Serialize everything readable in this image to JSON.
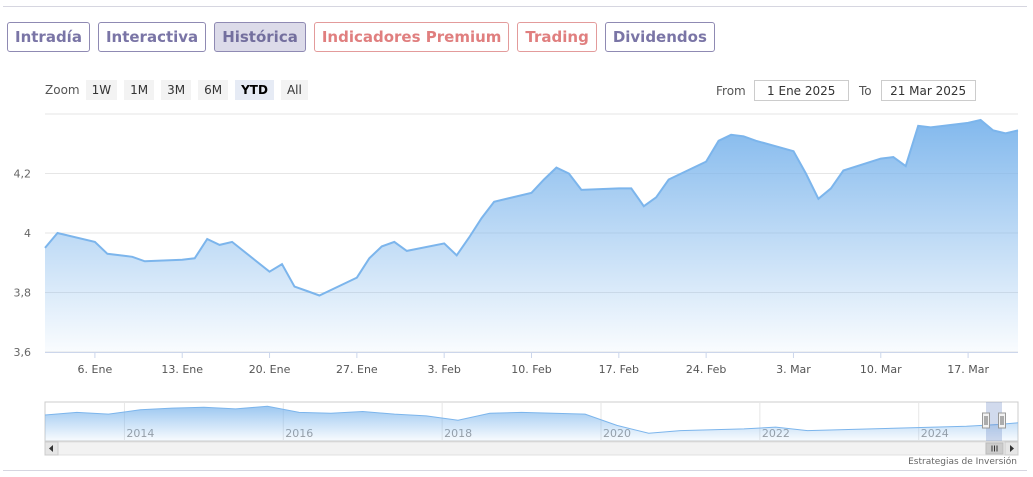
{
  "tabs": [
    {
      "label": "Intradía",
      "color": "purple",
      "active": false
    },
    {
      "label": "Interactiva",
      "color": "purple",
      "active": false
    },
    {
      "label": "Histórica",
      "color": "purple",
      "active": true
    },
    {
      "label": "Indicadores Premium",
      "color": "red",
      "active": false
    },
    {
      "label": "Trading",
      "color": "red",
      "active": false
    },
    {
      "label": "Dividendos",
      "color": "purple",
      "active": false
    }
  ],
  "zoom": {
    "label": "Zoom",
    "buttons": [
      "1W",
      "1M",
      "3M",
      "6M",
      "YTD",
      "All"
    ],
    "selected": "YTD"
  },
  "range": {
    "from_label": "From",
    "from_value": "1 Ene 2025",
    "to_label": "To",
    "to_value": "21 Mar 2025"
  },
  "credit": "Estrategias de Inversión",
  "colors": {
    "line": "#7cb5ec",
    "fill_top": "#7cb5ec",
    "grid": "#e6e6e6",
    "navigator_mask": "#cccccc"
  },
  "chart_data": {
    "type": "area",
    "title": "",
    "xlabel": "",
    "ylabel": "",
    "ylim": [
      3.6,
      4.4
    ],
    "yticks": [
      3.6,
      3.8,
      4.0,
      4.2
    ],
    "ytick_labels": [
      "3,6",
      "3,8",
      "4",
      "4,2"
    ],
    "xlim": [
      "2025-01-02",
      "2025-03-21"
    ],
    "xticks": [
      "2025-01-06",
      "2025-01-13",
      "2025-01-20",
      "2025-01-27",
      "2025-02-03",
      "2025-02-10",
      "2025-02-17",
      "2025-02-24",
      "2025-03-03",
      "2025-03-10",
      "2025-03-17"
    ],
    "xtick_labels": [
      "6. Ene",
      "13. Ene",
      "20. Ene",
      "27. Ene",
      "3. Feb",
      "10. Feb",
      "17. Feb",
      "24. Feb",
      "3. Mar",
      "10. Mar",
      "17. Mar"
    ],
    "grid": true,
    "legend": "none",
    "series": [
      {
        "x": [
          "2025-01-02",
          "2025-01-03",
          "2025-01-06",
          "2025-01-07",
          "2025-01-08",
          "2025-01-09",
          "2025-01-10",
          "2025-01-13",
          "2025-01-14",
          "2025-01-15",
          "2025-01-16",
          "2025-01-17",
          "2025-01-20",
          "2025-01-21",
          "2025-01-22",
          "2025-01-23",
          "2025-01-24",
          "2025-01-27",
          "2025-01-28",
          "2025-01-29",
          "2025-01-30",
          "2025-01-31",
          "2025-02-03",
          "2025-02-04",
          "2025-02-05",
          "2025-02-06",
          "2025-02-07",
          "2025-02-10",
          "2025-02-11",
          "2025-02-12",
          "2025-02-13",
          "2025-02-14",
          "2025-02-17",
          "2025-02-18",
          "2025-02-19",
          "2025-02-20",
          "2025-02-21",
          "2025-02-24",
          "2025-02-25",
          "2025-02-26",
          "2025-02-27",
          "2025-02-28",
          "2025-03-03",
          "2025-03-04",
          "2025-03-05",
          "2025-03-06",
          "2025-03-07",
          "2025-03-10",
          "2025-03-11",
          "2025-03-12",
          "2025-03-13",
          "2025-03-14",
          "2025-03-17",
          "2025-03-18",
          "2025-03-19",
          "2025-03-20",
          "2025-03-21"
        ],
        "values": [
          3.95,
          4.0,
          3.97,
          3.93,
          3.925,
          3.92,
          3.905,
          3.91,
          3.915,
          3.98,
          3.96,
          3.97,
          3.87,
          3.895,
          3.82,
          3.805,
          3.79,
          3.85,
          3.915,
          3.955,
          3.97,
          3.94,
          3.965,
          3.925,
          3.985,
          4.05,
          4.105,
          4.135,
          4.18,
          4.22,
          4.2,
          4.145,
          4.15,
          4.15,
          4.09,
          4.12,
          4.18,
          4.24,
          4.31,
          4.33,
          4.325,
          4.31,
          4.275,
          4.2,
          4.115,
          4.15,
          4.21,
          4.25,
          4.255,
          4.225,
          4.36,
          4.355,
          4.37,
          4.38,
          4.345,
          4.335,
          4.345
        ]
      }
    ],
    "navigator": {
      "type": "area",
      "xtick_labels": [
        "2014",
        "2016",
        "2018",
        "2020",
        "2022",
        "2024"
      ],
      "xlim": [
        2013.0,
        2025.25
      ],
      "ylim": [
        2.0,
        6.5
      ],
      "x": [
        2013.0,
        2013.4,
        2013.8,
        2014.2,
        2014.6,
        2015.0,
        2015.4,
        2015.8,
        2016.2,
        2016.6,
        2017.0,
        2017.4,
        2017.8,
        2018.2,
        2018.6,
        2019.0,
        2019.4,
        2019.8,
        2020.2,
        2020.6,
        2021.0,
        2021.4,
        2021.8,
        2022.2,
        2022.6,
        2023.0,
        2023.4,
        2023.8,
        2024.2,
        2024.6,
        2025.0,
        2025.25
      ],
      "values": [
        5.0,
        5.3,
        5.1,
        5.6,
        5.8,
        5.9,
        5.7,
        6.0,
        5.3,
        5.2,
        5.4,
        5.1,
        4.9,
        4.4,
        5.2,
        5.3,
        5.2,
        5.1,
        3.8,
        2.9,
        3.2,
        3.3,
        3.4,
        3.6,
        3.2,
        3.3,
        3.4,
        3.5,
        3.6,
        3.7,
        3.9,
        4.1
      ]
    }
  }
}
